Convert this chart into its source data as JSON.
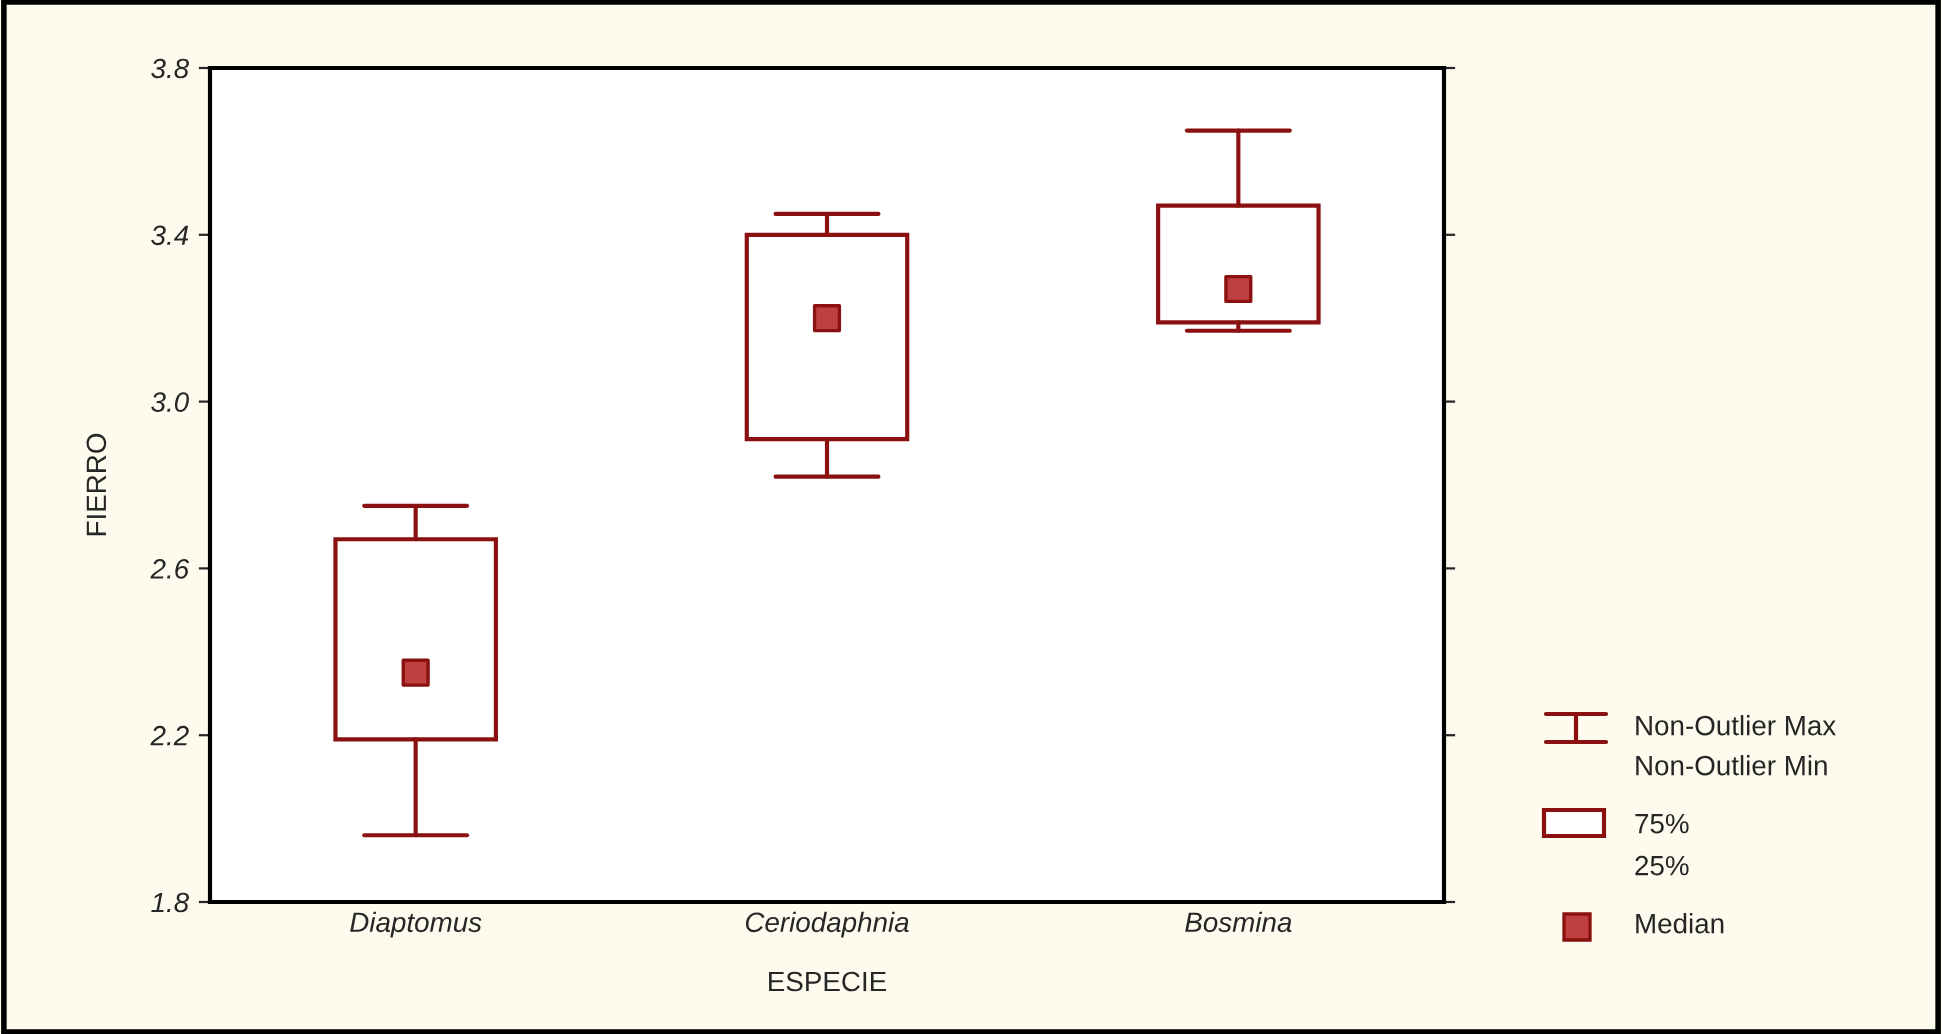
{
  "chart_data": {
    "type": "box",
    "categories": [
      "Diaptomus",
      "Ceriodaphnia",
      "Bosmina"
    ],
    "boxes": [
      {
        "low": 1.96,
        "q1": 2.19,
        "median": 2.35,
        "q3": 2.67,
        "high": 2.75
      },
      {
        "low": 2.82,
        "q1": 2.91,
        "median": 3.2,
        "q3": 3.4,
        "high": 3.45
      },
      {
        "low": 3.17,
        "q1": 3.19,
        "median": 3.27,
        "q3": 3.47,
        "high": 3.65
      }
    ],
    "color": "#8b1010",
    "xlabel": "ESPECIE",
    "ylabel": "FIERRO",
    "ylim": [
      1.8,
      3.8
    ],
    "yticks": [
      1.8,
      2.2,
      2.6,
      {
        "value": 3.0,
        "label": "3.0"
      },
      3.4,
      3.8
    ],
    "marker": "square",
    "grid": false,
    "annotations": [
      "Non-Outlier Max",
      "Non-Outlier Min",
      "75%",
      "25%",
      "Median"
    ]
  }
}
